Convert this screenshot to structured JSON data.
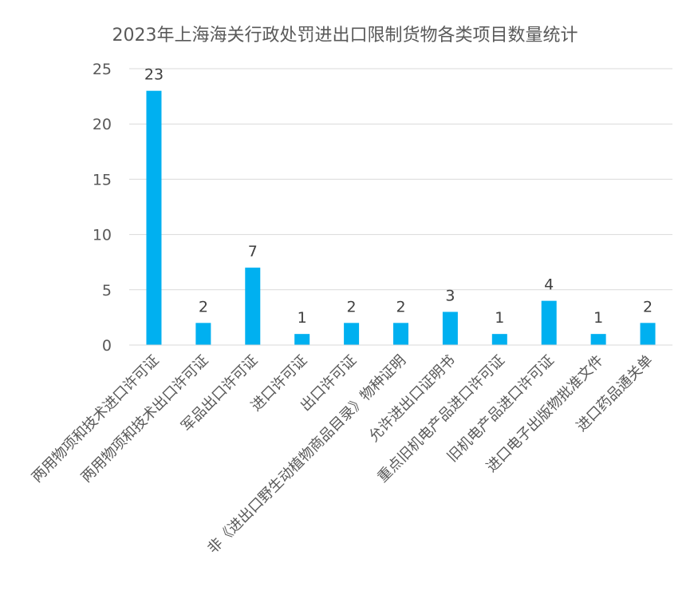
{
  "chart_data": {
    "type": "bar",
    "title": "2023年上海海关行政处罚进出口限制货物各类项目数量统计",
    "categories": [
      "两用物项和技术进口许可证",
      "两用物项和技术出口许可证",
      "军品出口许可证",
      "进口许可证",
      "出口许可证",
      "非《进出口野生动植物商品目录》物种证明",
      "允许进出口证明书",
      "重点旧机电产品进口许可证",
      "旧机电产品进口许可证",
      "进口电子出版物批准文件",
      "进口药品通关单"
    ],
    "values": [
      23,
      2,
      7,
      1,
      2,
      2,
      3,
      1,
      4,
      1,
      2
    ],
    "ylim": [
      0,
      25
    ],
    "yticks": [
      0,
      5,
      10,
      15,
      20,
      25
    ],
    "grid": true,
    "bar_color": "#00b0f0",
    "xlabel": "",
    "ylabel": ""
  }
}
